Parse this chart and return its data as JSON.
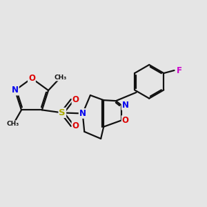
{
  "bg": "#e5e5e5",
  "bc": "#111111",
  "bw": 1.6,
  "dbo": 0.04,
  "colors": {
    "N": "#0000ee",
    "O": "#dd0000",
    "S": "#aaaa00",
    "F": "#cc00cc",
    "C": "#111111"
  },
  "fs": 8.5
}
